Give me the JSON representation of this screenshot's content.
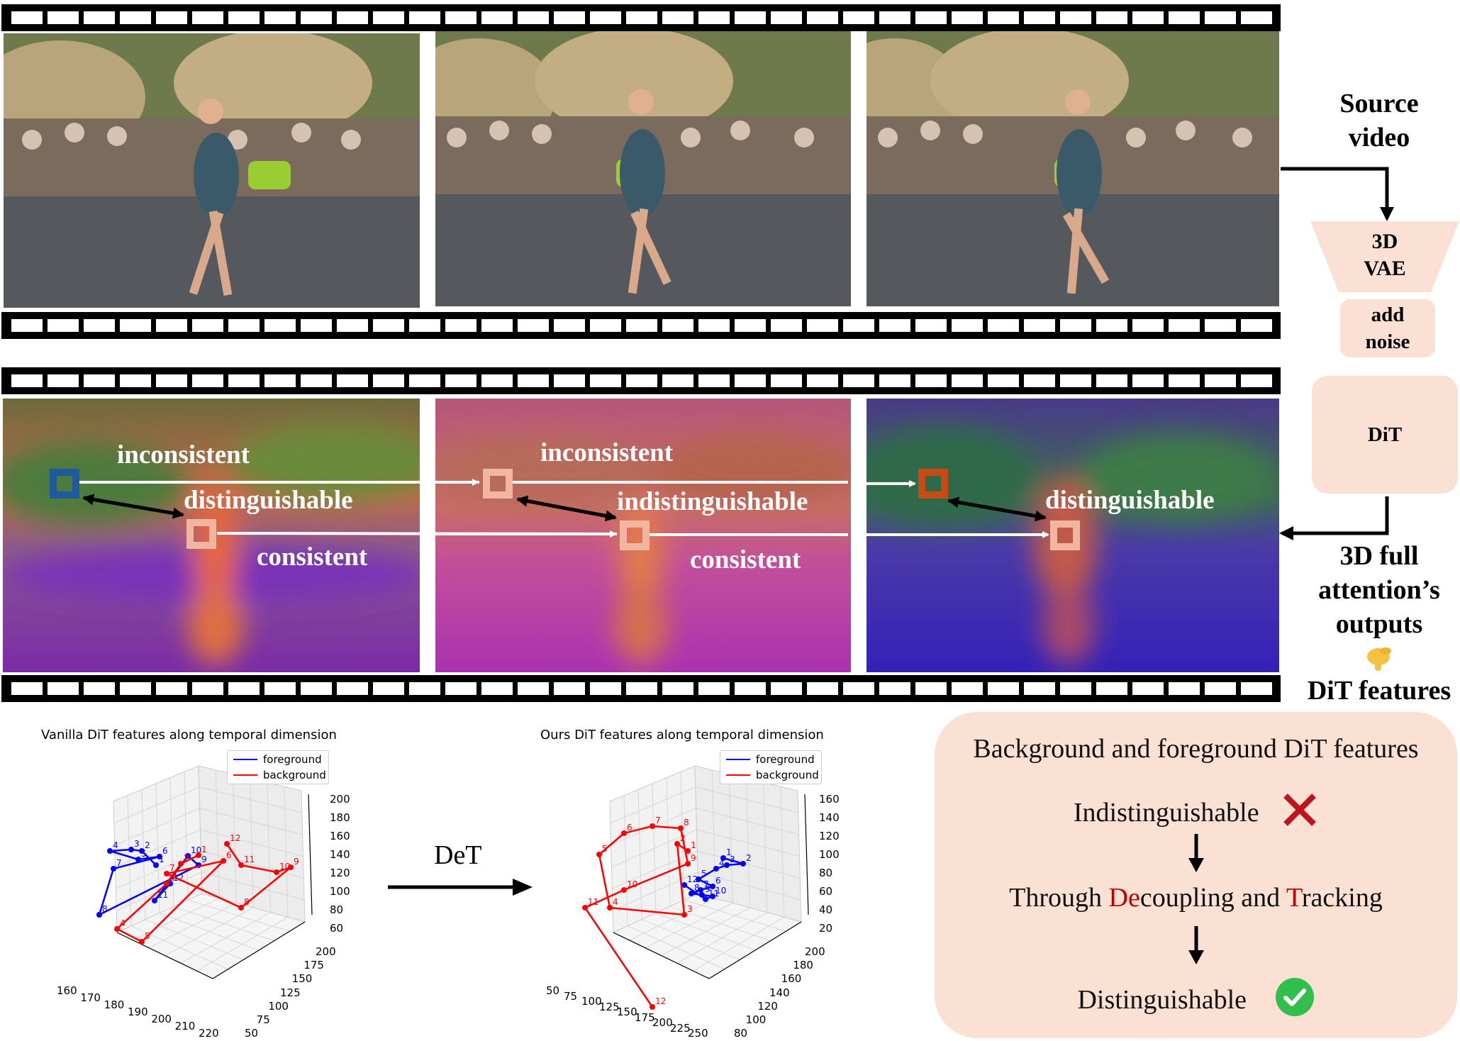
{
  "labels": {
    "source_video": [
      "Source",
      "video"
    ],
    "vae": [
      "3D",
      "VAE"
    ],
    "add_noise": [
      "add",
      "noise"
    ],
    "dit": "DiT",
    "attention": [
      "3D full",
      "attention’s",
      "outputs"
    ],
    "dit_features": "DiT features",
    "det": "DeT"
  },
  "annotations": {
    "f1_top": "inconsistent",
    "f1_mid": "distinguishable",
    "f1_bottom": "consistent",
    "f2_top": "inconsistent",
    "f2_mid": "indistinguishable",
    "f2_bottom": "consistent",
    "f3_mid": "distinguishable"
  },
  "panel": {
    "title": "Background and foreground DiT features",
    "step1": "Indistinguishable",
    "step2_parts": [
      "Through ",
      "De",
      "coupling and ",
      "T",
      "racking"
    ],
    "step3": "Distinguishable"
  },
  "colors": {
    "foreground": "#0000ff",
    "background": "#ff0000",
    "peach": "#fbe0d4",
    "highlight_red": "#c00000"
  },
  "chart_data": [
    {
      "type": "line3d",
      "title": "Vanilla DiT features along temporal dimension",
      "legend": [
        "foreground",
        "background"
      ],
      "x_ticks": [
        "160",
        "170",
        "180",
        "190",
        "200",
        "210",
        "220"
      ],
      "y_ticks": [
        "50",
        "75",
        "100",
        "125",
        "150",
        "175",
        "200"
      ],
      "z_ticks": [
        "60",
        "80",
        "100",
        "120",
        "140",
        "160",
        "180",
        "200"
      ],
      "point_labels_fg": [
        "1",
        "2",
        "3",
        "4",
        "5",
        "6",
        "7",
        "8",
        "9",
        "10",
        "11",
        "12"
      ],
      "point_labels_bg": [
        "1",
        "2",
        "3",
        "4",
        "5",
        "6",
        "7",
        "8",
        "9",
        "10",
        "11",
        "12"
      ]
    },
    {
      "type": "line3d",
      "title": "Ours DiT features along temporal dimension",
      "legend": [
        "foreground",
        "background"
      ],
      "x_ticks": [
        "50",
        "75",
        "100",
        "125",
        "150",
        "175",
        "200",
        "225",
        "250"
      ],
      "y_ticks": [
        "80",
        "100",
        "120",
        "140",
        "160",
        "180",
        "200"
      ],
      "z_ticks": [
        "20",
        "40",
        "60",
        "80",
        "100",
        "120",
        "140",
        "160"
      ],
      "point_labels_fg": [
        "1",
        "2",
        "3",
        "4",
        "5",
        "6",
        "7",
        "8",
        "9",
        "10",
        "11",
        "12"
      ],
      "point_labels_bg": [
        "1",
        "2",
        "3",
        "4",
        "5",
        "6",
        "7",
        "8",
        "9",
        "10",
        "11",
        "12"
      ]
    }
  ]
}
